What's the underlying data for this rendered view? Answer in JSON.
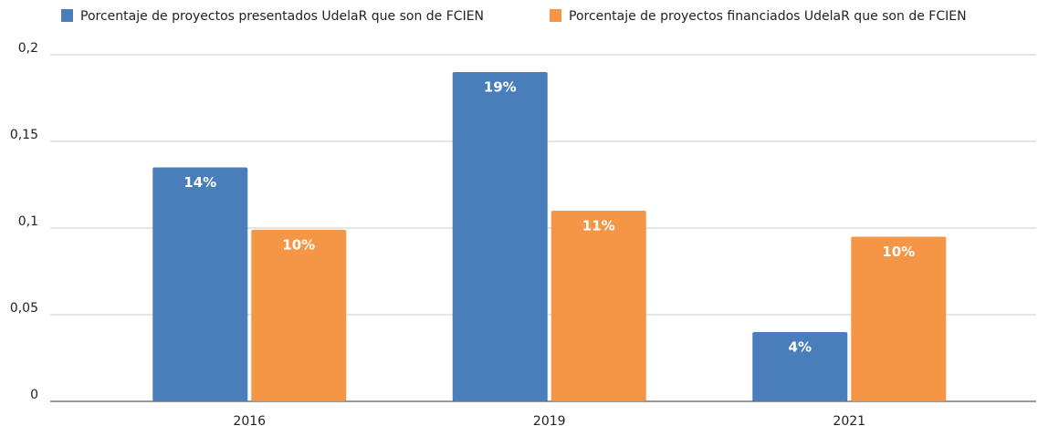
{
  "chart_data": {
    "type": "bar",
    "categories": [
      "2016",
      "2019",
      "2021"
    ],
    "series": [
      {
        "name": "Porcentaje de proyectos presentados UdelaR que son de FCIEN",
        "color": "#4a7ebb",
        "values": [
          0.135,
          0.19,
          0.04
        ],
        "value_labels": [
          "14%",
          "19%",
          "4%"
        ]
      },
      {
        "name": "Porcentaje de proyectos financiados UdelaR que son de FCIEN",
        "color": "#f59646",
        "values": [
          0.099,
          0.11,
          0.095
        ],
        "value_labels": [
          "10%",
          "11%",
          "10%"
        ]
      }
    ],
    "ylim": [
      0,
      0.2
    ],
    "yticks": [
      0,
      {
        "value": 0.05,
        "label": "0,05"
      },
      {
        "value": 0.1,
        "label": "0,1"
      },
      {
        "value": 0.15,
        "label": "0,15"
      },
      {
        "value": 0.2,
        "label": "0,2"
      }
    ],
    "grid": true,
    "legend": "top"
  }
}
